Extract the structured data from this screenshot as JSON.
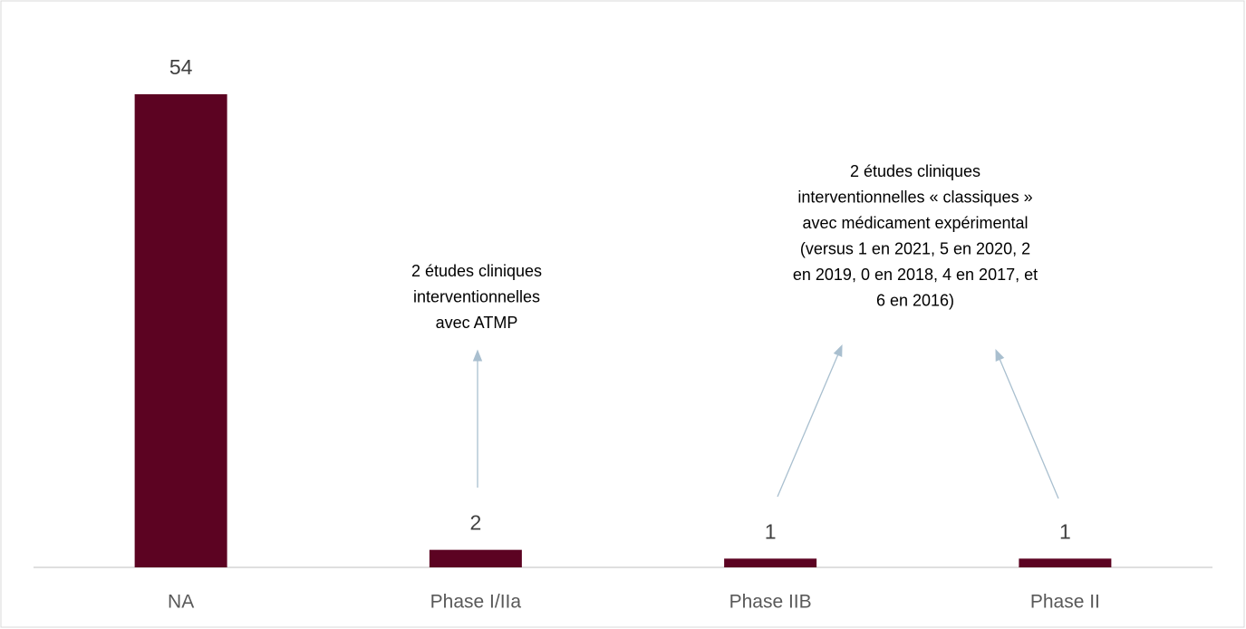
{
  "chart_data": {
    "type": "bar",
    "categories": [
      "NA",
      "Phase I/IIa",
      "Phase IIB",
      "Phase II"
    ],
    "values": [
      54,
      2,
      1,
      1
    ],
    "color": "#5c0322",
    "annotations": [
      {
        "lines": [
          "2 études cliniques",
          "interventionnelles",
          "avec ATMP"
        ]
      },
      {
        "lines": [
          "2 études cliniques",
          "interventionnelles « classiques »",
          "avec médicament expérimental",
          "(versus 1 en 2021, 5 en 2020, 2",
          "en 2019, 0 en 2018, 4 en 2017, et",
          "6 en 2016)"
        ]
      }
    ]
  }
}
